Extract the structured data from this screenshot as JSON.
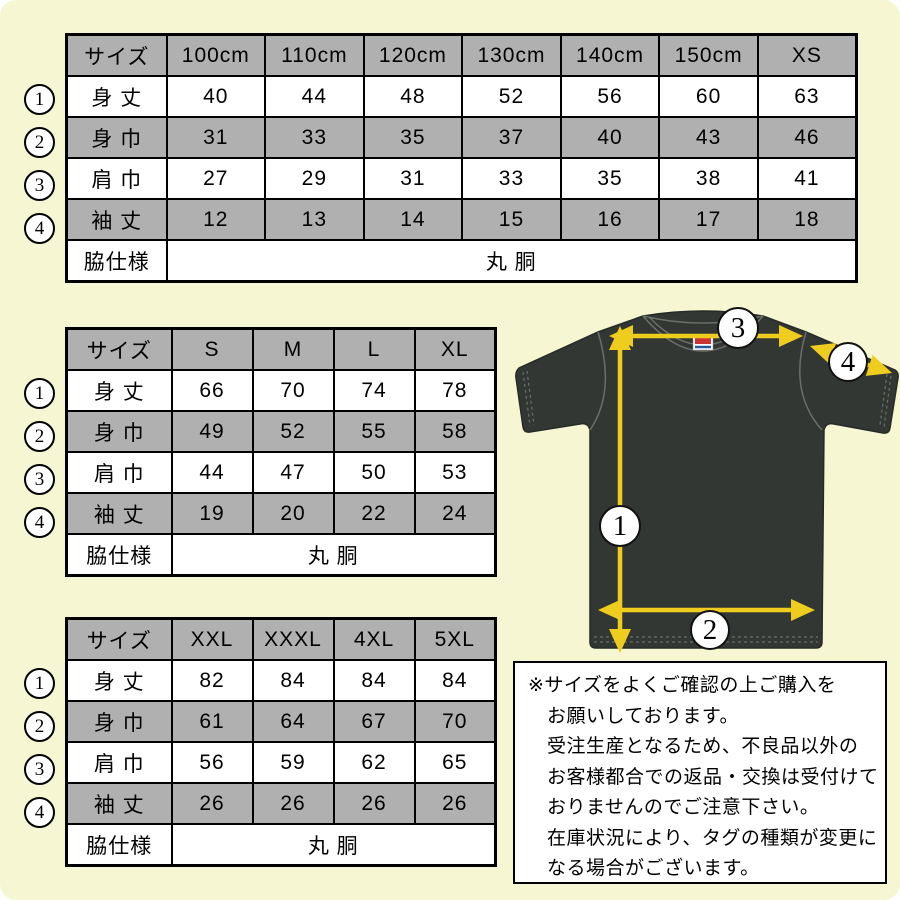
{
  "palette": {
    "background": "#f6f7d2",
    "table_gray": "#b0b0b0",
    "arrow_yellow": "#efcd1e",
    "shirt_color": "#323733",
    "tag_red": "#cc3333",
    "tag_blue": "#235a9e"
  },
  "tables": [
    {
      "name": "kids-sizes",
      "header": {
        "size_label": "サイズ",
        "columns": [
          "100cm",
          "110cm",
          "120cm",
          "130cm",
          "140cm",
          "150cm",
          "XS"
        ]
      },
      "rows": [
        {
          "num": "1",
          "label": "身 丈",
          "values": [
            "40",
            "44",
            "48",
            "52",
            "56",
            "60",
            "63"
          ]
        },
        {
          "num": "2",
          "label": "身 巾",
          "values": [
            "31",
            "33",
            "35",
            "37",
            "40",
            "43",
            "46"
          ]
        },
        {
          "num": "3",
          "label": "肩 巾",
          "values": [
            "27",
            "29",
            "31",
            "33",
            "35",
            "38",
            "41"
          ]
        },
        {
          "num": "4",
          "label": "袖 丈",
          "values": [
            "12",
            "13",
            "14",
            "15",
            "16",
            "17",
            "18"
          ]
        }
      ],
      "footer": {
        "label": "脇仕様",
        "value": "丸 胴"
      }
    },
    {
      "name": "adult-sizes",
      "header": {
        "size_label": "サイズ",
        "columns": [
          "S",
          "M",
          "L",
          "XL"
        ]
      },
      "rows": [
        {
          "num": "1",
          "label": "身 丈",
          "values": [
            "66",
            "70",
            "74",
            "78"
          ]
        },
        {
          "num": "2",
          "label": "身 巾",
          "values": [
            "49",
            "52",
            "55",
            "58"
          ]
        },
        {
          "num": "3",
          "label": "肩 巾",
          "values": [
            "44",
            "47",
            "50",
            "53"
          ]
        },
        {
          "num": "4",
          "label": "袖 丈",
          "values": [
            "19",
            "20",
            "22",
            "24"
          ]
        }
      ],
      "footer": {
        "label": "脇仕様",
        "value": "丸 胴"
      }
    },
    {
      "name": "big-sizes",
      "header": {
        "size_label": "サイズ",
        "columns": [
          "XXL",
          "XXXL",
          "4XL",
          "5XL"
        ]
      },
      "rows": [
        {
          "num": "1",
          "label": "身 丈",
          "values": [
            "82",
            "84",
            "84",
            "84"
          ]
        },
        {
          "num": "2",
          "label": "身 巾",
          "values": [
            "61",
            "64",
            "67",
            "70"
          ]
        },
        {
          "num": "3",
          "label": "肩 巾",
          "values": [
            "56",
            "59",
            "62",
            "65"
          ]
        },
        {
          "num": "4",
          "label": "袖 丈",
          "values": [
            "26",
            "26",
            "26",
            "26"
          ]
        }
      ],
      "footer": {
        "label": "脇仕様",
        "value": "丸 胴"
      }
    }
  ],
  "shirt_diagram": {
    "markers": {
      "m1": "1",
      "m2": "2",
      "m3": "3",
      "m4": "4"
    }
  },
  "notice": {
    "lines": [
      "※サイズをよくご確認の上ご購入を",
      "お願いしております。",
      "受注生産となるため、不良品以外の",
      "お客様都合での返品・交換は受付けて",
      "おりませんのでご注意下さい。",
      "在庫状況により、タグの種類が変更に",
      "なる場合がございます。"
    ]
  }
}
